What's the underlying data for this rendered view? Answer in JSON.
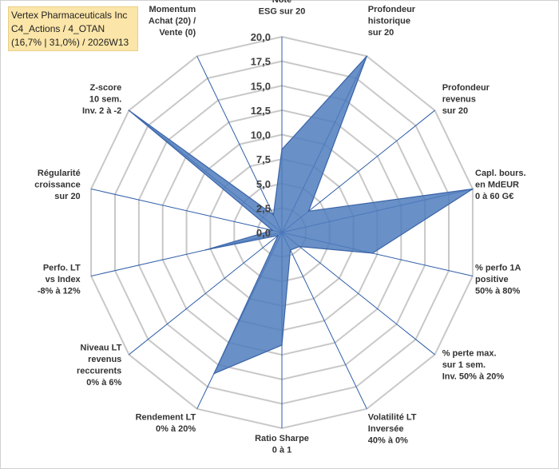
{
  "info": {
    "line1": "Vertex Pharmaceuticals Inc",
    "line2": "C4_Actions / 4_OTAN",
    "line3": "(16,7% | 31,0%) / 2026W13"
  },
  "chart_data": {
    "type": "radar",
    "title": "Vertex Pharmaceuticals Inc",
    "rmin": 0,
    "rmax": 20,
    "ticks": [
      "0,0",
      "2,5",
      "5,0",
      "7,5",
      "10,0",
      "12,5",
      "15,0",
      "17,5",
      "20,0"
    ],
    "tick_values": [
      0,
      2.5,
      5,
      7.5,
      10,
      12.5,
      15,
      17.5,
      20
    ],
    "axes": [
      {
        "label": [
          "Note",
          "ESG sur 20"
        ],
        "value": 8.5
      },
      {
        "label": [
          "Profondeur",
          "historique",
          "sur 20"
        ],
        "value": 20
      },
      {
        "label": [
          "Profondeur",
          "revenus",
          "sur 20"
        ],
        "value": 3.5
      },
      {
        "label": [
          "Capl. bours.",
          "en MdEUR",
          "0 à 60 G€"
        ],
        "value": 20
      },
      {
        "label": [
          "% perfo 1A",
          "positive",
          "50% à 80%"
        ],
        "value": 9.5
      },
      {
        "label": [
          "% perte max.",
          "sur 1 sem.",
          "Inv. 50% à 20%"
        ],
        "value": 2.3
      },
      {
        "label": [
          "Volatilité LT",
          "Inversée",
          "40% à 0%"
        ],
        "value": 2.0
      },
      {
        "label": [
          "Ratio Sharpe",
          "0 à 1"
        ],
        "value": 11.5
      },
      {
        "label": [
          "Rendement LT",
          "0% à 20%"
        ],
        "value": 16.0
      },
      {
        "label": [
          "Niveau LT",
          "revenus",
          "reccurents",
          "0% à 6%"
        ],
        "value": 0.5
      },
      {
        "label": [
          "Perfo. LT",
          "vs Index",
          "-8% à 12%"
        ],
        "value": 8.0
      },
      {
        "label": [
          "Régularité",
          "croissance",
          "sur 20"
        ],
        "value": 1.0
      },
      {
        "label": [
          "Z-score",
          "10 sem.",
          "Inv. 2 à -2"
        ],
        "value": 20
      },
      {
        "label": [
          "Momentum",
          "Achat (20) /",
          "Vente (0)"
        ],
        "value": 2.0
      }
    ],
    "colors": {
      "fill": "#4f7dbd",
      "stroke": "#3a64a8",
      "grid": "#c8c8c8",
      "spoke": "#2f5ea8"
    }
  }
}
